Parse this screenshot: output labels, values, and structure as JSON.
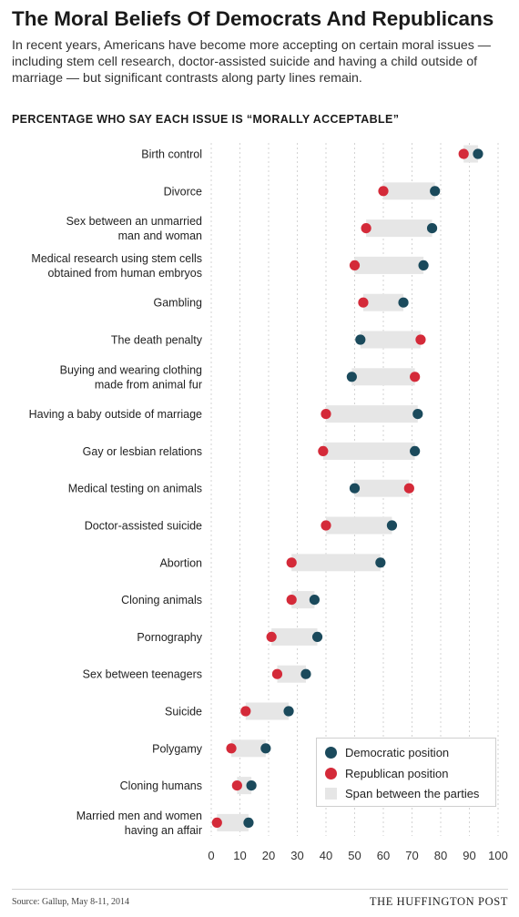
{
  "title": "The Moral Beliefs Of Democrats And Republicans",
  "subtitle": "In recent years, Americans have become more accepting on certain moral issues — including stem cell research, doctor-assisted suicide and having a child outside of marriage — but significant contrasts along party lines remain.",
  "footer": {
    "source": "Source: Gallup, May 8-11, 2014",
    "brand": "THE HUFFINGTON POST"
  },
  "colors": {
    "democratic": "#1b4a5c",
    "republican": "#d42a39",
    "span": "#e6e6e6",
    "grid": "#c9c9c9"
  },
  "chart_data": {
    "type": "dot-range",
    "title": "PERCENTAGE WHO SAY EACH ISSUE IS “MORALLY ACCEPTABLE”",
    "xlim": [
      0,
      100
    ],
    "xticks": [
      0,
      10,
      20,
      30,
      40,
      50,
      60,
      70,
      80,
      90,
      100
    ],
    "grid": true,
    "legend_position": "bottom-right",
    "legend": {
      "democratic": "Democratic position",
      "republican": "Republican position",
      "span": "Span between the parties"
    },
    "categories": [
      [
        "Birth control"
      ],
      [
        "Divorce"
      ],
      [
        "Sex between an unmarried",
        "man and woman"
      ],
      [
        "Medical research using stem cells",
        "obtained from human embryos"
      ],
      [
        "Gambling"
      ],
      [
        "The death penalty"
      ],
      [
        "Buying and wearing clothing",
        "made from animal fur"
      ],
      [
        "Having a baby outside of marriage"
      ],
      [
        "Gay or lesbian relations"
      ],
      [
        "Medical testing on animals"
      ],
      [
        "Doctor-assisted suicide"
      ],
      [
        "Abortion"
      ],
      [
        "Cloning animals"
      ],
      [
        "Pornography"
      ],
      [
        "Sex between teenagers"
      ],
      [
        "Suicide"
      ],
      [
        "Polygamy"
      ],
      [
        "Cloning humans"
      ],
      [
        "Married men and women",
        "having an affair"
      ]
    ],
    "series": [
      {
        "name": "Democratic position",
        "values": [
          93,
          78,
          77,
          74,
          67,
          52,
          49,
          72,
          71,
          50,
          63,
          59,
          36,
          37,
          33,
          27,
          19,
          14,
          13
        ]
      },
      {
        "name": "Republican position",
        "values": [
          88,
          60,
          54,
          50,
          53,
          73,
          71,
          40,
          39,
          69,
          40,
          28,
          28,
          21,
          23,
          12,
          7,
          9,
          2
        ]
      }
    ]
  }
}
